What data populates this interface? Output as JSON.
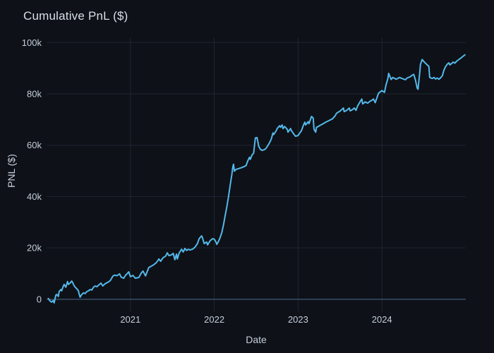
{
  "colors": {
    "background": "#0e1117",
    "grid": "#1e2633",
    "zeroline": "#364863",
    "line": "#53b9ea",
    "title_text": "#d8dfe8",
    "axis_text": "#c4cedb"
  },
  "chart_data": {
    "type": "line",
    "title": "Cumulative PnL ($)",
    "xlabel": "Date",
    "ylabel": "PNL ($)",
    "legend": "none",
    "grid": true,
    "x_range": [
      2020.0,
      2025.0
    ],
    "y_range": [
      -4700,
      102000
    ],
    "x_ticks": [
      {
        "value": 2021,
        "label": "2021"
      },
      {
        "value": 2022,
        "label": "2022"
      },
      {
        "value": 2023,
        "label": "2023"
      },
      {
        "value": 2024,
        "label": "2024"
      }
    ],
    "y_ticks": [
      {
        "value": 0,
        "label": "0"
      },
      {
        "value": 20000,
        "label": "20k"
      },
      {
        "value": 40000,
        "label": "40k"
      },
      {
        "value": 60000,
        "label": "60k"
      },
      {
        "value": 80000,
        "label": "80k"
      },
      {
        "value": 100000,
        "label": "100k"
      }
    ],
    "series": [
      {
        "name": "Cumulative PnL",
        "color": "#53b9ea",
        "points": [
          [
            2020.02,
            300
          ],
          [
            2020.04,
            -600
          ],
          [
            2020.06,
            -1100
          ],
          [
            2020.08,
            -500
          ],
          [
            2020.09,
            -1400
          ],
          [
            2020.11,
            1600
          ],
          [
            2020.12,
            1900
          ],
          [
            2020.14,
            1100
          ],
          [
            2020.15,
            3000
          ],
          [
            2020.17,
            3800
          ],
          [
            2020.18,
            3300
          ],
          [
            2020.2,
            5200
          ],
          [
            2020.21,
            5800
          ],
          [
            2020.23,
            4700
          ],
          [
            2020.25,
            6900
          ],
          [
            2020.26,
            5800
          ],
          [
            2020.28,
            6300
          ],
          [
            2020.3,
            7100
          ],
          [
            2020.31,
            6600
          ],
          [
            2020.33,
            5200
          ],
          [
            2020.35,
            4400
          ],
          [
            2020.36,
            4100
          ],
          [
            2020.38,
            3300
          ],
          [
            2020.39,
            1900
          ],
          [
            2020.4,
            800
          ],
          [
            2020.42,
            1900
          ],
          [
            2020.44,
            2500
          ],
          [
            2020.46,
            2200
          ],
          [
            2020.48,
            3000
          ],
          [
            2020.5,
            3300
          ],
          [
            2020.52,
            3800
          ],
          [
            2020.54,
            3600
          ],
          [
            2020.56,
            4700
          ],
          [
            2020.58,
            5200
          ],
          [
            2020.6,
            4900
          ],
          [
            2020.62,
            5500
          ],
          [
            2020.65,
            6300
          ],
          [
            2020.67,
            5200
          ],
          [
            2020.7,
            6100
          ],
          [
            2020.73,
            6600
          ],
          [
            2020.76,
            7300
          ],
          [
            2020.79,
            9000
          ],
          [
            2020.81,
            9400
          ],
          [
            2020.84,
            9200
          ],
          [
            2020.87,
            9900
          ],
          [
            2020.89,
            8600
          ],
          [
            2020.92,
            8200
          ],
          [
            2020.94,
            9300
          ],
          [
            2020.96,
            9900
          ],
          [
            2020.98,
            10700
          ],
          [
            2021.0,
            8800
          ],
          [
            2021.03,
            9300
          ],
          [
            2021.06,
            8200
          ],
          [
            2021.1,
            8500
          ],
          [
            2021.13,
            10200
          ],
          [
            2021.15,
            11000
          ],
          [
            2021.18,
            9100
          ],
          [
            2021.22,
            12400
          ],
          [
            2021.25,
            12900
          ],
          [
            2021.28,
            13500
          ],
          [
            2021.31,
            14300
          ],
          [
            2021.34,
            15700
          ],
          [
            2021.36,
            14800
          ],
          [
            2021.39,
            16200
          ],
          [
            2021.42,
            16800
          ],
          [
            2021.44,
            18100
          ],
          [
            2021.46,
            17000
          ],
          [
            2021.49,
            17300
          ],
          [
            2021.51,
            17900
          ],
          [
            2021.53,
            15400
          ],
          [
            2021.55,
            17600
          ],
          [
            2021.56,
            15700
          ],
          [
            2021.58,
            17900
          ],
          [
            2021.6,
            19000
          ],
          [
            2021.61,
            19500
          ],
          [
            2021.63,
            18400
          ],
          [
            2021.65,
            19800
          ],
          [
            2021.67,
            19000
          ],
          [
            2021.69,
            19500
          ],
          [
            2021.71,
            19200
          ],
          [
            2021.74,
            19500
          ],
          [
            2021.77,
            20300
          ],
          [
            2021.8,
            21700
          ],
          [
            2021.82,
            23600
          ],
          [
            2021.85,
            24700
          ],
          [
            2021.86,
            23900
          ],
          [
            2021.88,
            21700
          ],
          [
            2021.91,
            22300
          ],
          [
            2021.92,
            21200
          ],
          [
            2021.95,
            22800
          ],
          [
            2021.98,
            23600
          ],
          [
            2022.0,
            23400
          ],
          [
            2022.02,
            22300
          ],
          [
            2022.03,
            21400
          ],
          [
            2022.05,
            22500
          ],
          [
            2022.07,
            24000
          ],
          [
            2022.09,
            26000
          ],
          [
            2022.11,
            29000
          ],
          [
            2022.13,
            32500
          ],
          [
            2022.15,
            36000
          ],
          [
            2022.17,
            40000
          ],
          [
            2022.19,
            44500
          ],
          [
            2022.21,
            48500
          ],
          [
            2022.22,
            51200
          ],
          [
            2022.23,
            52600
          ],
          [
            2022.24,
            49900
          ],
          [
            2022.26,
            50600
          ],
          [
            2022.29,
            50900
          ],
          [
            2022.32,
            51200
          ],
          [
            2022.35,
            51600
          ],
          [
            2022.38,
            52100
          ],
          [
            2022.4,
            53900
          ],
          [
            2022.42,
            55300
          ],
          [
            2022.43,
            54500
          ],
          [
            2022.45,
            56200
          ],
          [
            2022.47,
            56900
          ],
          [
            2022.49,
            62800
          ],
          [
            2022.51,
            63000
          ],
          [
            2022.53,
            59600
          ],
          [
            2022.55,
            58400
          ],
          [
            2022.57,
            58000
          ],
          [
            2022.6,
            58300
          ],
          [
            2022.62,
            58900
          ],
          [
            2022.66,
            61000
          ],
          [
            2022.68,
            62400
          ],
          [
            2022.7,
            64800
          ],
          [
            2022.71,
            64200
          ],
          [
            2022.74,
            65700
          ],
          [
            2022.75,
            66500
          ],
          [
            2022.78,
            67600
          ],
          [
            2022.79,
            67000
          ],
          [
            2022.81,
            67900
          ],
          [
            2022.82,
            66500
          ],
          [
            2022.84,
            67300
          ],
          [
            2022.87,
            66200
          ],
          [
            2022.88,
            65100
          ],
          [
            2022.91,
            66500
          ],
          [
            2022.92,
            65700
          ],
          [
            2022.95,
            64300
          ],
          [
            2022.97,
            63500
          ],
          [
            2023.0,
            63800
          ],
          [
            2023.02,
            64800
          ],
          [
            2023.04,
            65700
          ],
          [
            2023.06,
            67500
          ],
          [
            2023.08,
            69000
          ],
          [
            2023.09,
            67900
          ],
          [
            2023.12,
            69200
          ],
          [
            2023.13,
            68400
          ],
          [
            2023.16,
            71200
          ],
          [
            2023.18,
            70600
          ],
          [
            2023.19,
            66200
          ],
          [
            2023.21,
            65100
          ],
          [
            2023.22,
            67000
          ],
          [
            2023.24,
            67300
          ],
          [
            2023.27,
            67900
          ],
          [
            2023.29,
            68200
          ],
          [
            2023.33,
            69000
          ],
          [
            2023.35,
            69300
          ],
          [
            2023.38,
            69800
          ],
          [
            2023.41,
            70300
          ],
          [
            2023.44,
            71400
          ],
          [
            2023.46,
            72500
          ],
          [
            2023.5,
            73300
          ],
          [
            2023.52,
            73900
          ],
          [
            2023.54,
            74500
          ],
          [
            2023.55,
            73100
          ],
          [
            2023.58,
            73600
          ],
          [
            2023.61,
            74500
          ],
          [
            2023.62,
            73400
          ],
          [
            2023.65,
            73900
          ],
          [
            2023.67,
            74500
          ],
          [
            2023.69,
            73600
          ],
          [
            2023.71,
            75300
          ],
          [
            2023.75,
            77500
          ],
          [
            2023.76,
            78000
          ],
          [
            2023.77,
            76100
          ],
          [
            2023.8,
            76900
          ],
          [
            2023.83,
            76400
          ],
          [
            2023.86,
            77200
          ],
          [
            2023.88,
            77500
          ],
          [
            2023.9,
            78000
          ],
          [
            2023.92,
            76600
          ],
          [
            2023.96,
            80300
          ],
          [
            2024.0,
            81300
          ],
          [
            2024.03,
            80600
          ],
          [
            2024.05,
            83600
          ],
          [
            2024.07,
            85800
          ],
          [
            2024.08,
            88000
          ],
          [
            2024.11,
            85600
          ],
          [
            2024.13,
            86400
          ],
          [
            2024.17,
            85700
          ],
          [
            2024.21,
            86400
          ],
          [
            2024.24,
            86000
          ],
          [
            2024.28,
            85500
          ],
          [
            2024.3,
            86200
          ],
          [
            2024.34,
            86700
          ],
          [
            2024.36,
            87300
          ],
          [
            2024.38,
            87600
          ],
          [
            2024.4,
            85400
          ],
          [
            2024.42,
            82300
          ],
          [
            2024.43,
            81800
          ],
          [
            2024.45,
            88000
          ],
          [
            2024.46,
            91500
          ],
          [
            2024.48,
            93400
          ],
          [
            2024.5,
            92600
          ],
          [
            2024.52,
            91900
          ],
          [
            2024.54,
            91300
          ],
          [
            2024.56,
            90700
          ],
          [
            2024.57,
            86400
          ],
          [
            2024.6,
            86000
          ],
          [
            2024.62,
            86400
          ],
          [
            2024.64,
            85800
          ],
          [
            2024.66,
            86200
          ],
          [
            2024.68,
            85700
          ],
          [
            2024.7,
            86300
          ],
          [
            2024.72,
            87000
          ],
          [
            2024.74,
            89300
          ],
          [
            2024.76,
            90700
          ],
          [
            2024.78,
            91600
          ],
          [
            2024.8,
            92100
          ],
          [
            2024.81,
            91300
          ],
          [
            2024.83,
            91800
          ],
          [
            2024.85,
            92400
          ],
          [
            2024.87,
            92000
          ],
          [
            2024.89,
            92700
          ],
          [
            2024.91,
            93200
          ],
          [
            2024.93,
            93700
          ],
          [
            2024.95,
            94200
          ],
          [
            2024.97,
            94700
          ],
          [
            2024.99,
            95200
          ]
        ]
      }
    ]
  }
}
